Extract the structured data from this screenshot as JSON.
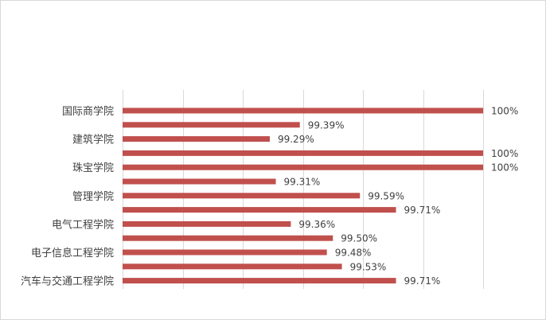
{
  "chart_data": {
    "type": "bar",
    "orientation": "horizontal",
    "title": "",
    "xlabel": "",
    "ylabel": "",
    "categories": [
      "国际商学院",
      "",
      "建筑学院",
      "",
      "珠宝学院",
      "",
      "管理学院",
      "",
      "电气工程学院",
      "",
      "电子信息工程学院",
      "",
      "汽车与交通工程学院"
    ],
    "values": [
      100,
      99.39,
      99.29,
      100,
      100,
      99.31,
      99.59,
      99.71,
      99.36,
      99.5,
      99.48,
      99.53,
      99.71
    ],
    "data_labels": [
      "100%",
      "99.39%",
      "99.29%",
      "100%",
      "100%",
      "99.31%",
      "99.59%",
      "99.71%",
      "99.36%",
      "99.50%",
      "99.48%",
      "99.53%",
      "99.71%"
    ],
    "xlim": [
      98.8,
      100
    ],
    "x_gridline_step": 0.2,
    "grid": true,
    "bar_color": "#c0504d",
    "legend": "none"
  }
}
